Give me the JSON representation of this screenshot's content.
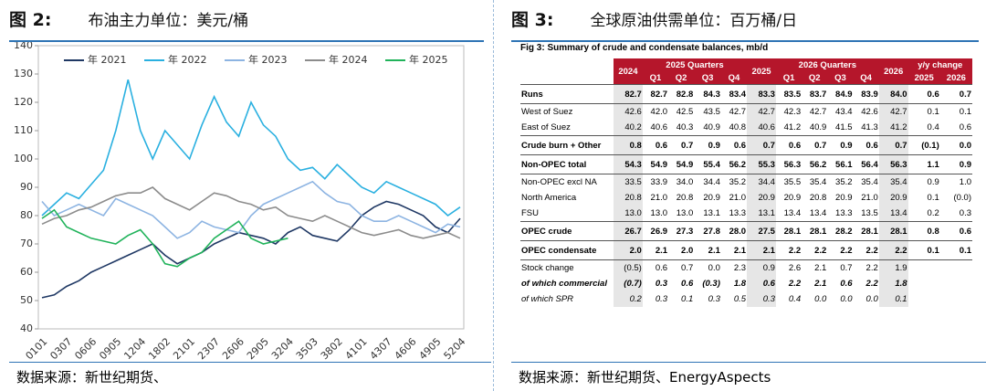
{
  "left_panel": {
    "figure_label": "图 2:",
    "caption": "布油主力单位：美元/桶",
    "source": "数据来源：新世纪期货、"
  },
  "right_panel": {
    "figure_label": "图 3:",
    "caption": "全球原油供需单位：百万桶/日",
    "source": "数据来源：新世纪期货、EnergyAspects"
  },
  "chart_data": {
    "type": "line",
    "legend": "top",
    "grid": false,
    "categories": [
      "0101",
      null,
      "0307",
      null,
      "0606",
      null,
      "0905",
      null,
      "1204",
      null,
      "1802",
      null,
      "2101",
      null,
      "2307",
      null,
      "2606",
      null,
      "2905",
      null,
      "3204",
      null,
      "3503",
      null,
      "3802",
      null,
      "4101",
      null,
      "4307",
      null,
      "4606",
      null,
      "4905",
      null,
      "5204"
    ],
    "ylim": [
      40,
      140
    ],
    "yticks": [
      40,
      50,
      60,
      70,
      80,
      90,
      100,
      110,
      120,
      130,
      140
    ],
    "series": [
      {
        "name": "年 2021",
        "color": "#1f3864",
        "values": [
          51,
          52,
          55,
          57,
          60,
          62,
          64,
          66,
          68,
          70,
          66,
          63,
          65,
          67,
          70,
          72,
          74,
          73,
          72,
          70,
          74,
          76,
          73,
          72,
          71,
          75,
          80,
          83,
          85,
          84,
          82,
          80,
          76,
          74,
          79
        ]
      },
      {
        "name": "年 2022",
        "color": "#2ab0e0",
        "values": [
          80,
          84,
          88,
          86,
          91,
          96,
          110,
          128,
          110,
          100,
          110,
          105,
          100,
          112,
          122,
          113,
          108,
          120,
          112,
          108,
          100,
          96,
          97,
          93,
          98,
          94,
          90,
          88,
          92,
          90,
          88,
          86,
          84,
          80,
          83
        ]
      },
      {
        "name": "年 2023",
        "color": "#8db4e2",
        "values": [
          85,
          80,
          82,
          84,
          82,
          80,
          86,
          84,
          82,
          80,
          76,
          72,
          74,
          78,
          76,
          75,
          74,
          80,
          84,
          86,
          88,
          90,
          92,
          88,
          85,
          84,
          80,
          78,
          78,
          80,
          78,
          76,
          74,
          77,
          76
        ]
      },
      {
        "name": "年 2024",
        "color": "#8c8c8c",
        "values": [
          77,
          79,
          80,
          82,
          83,
          85,
          87,
          88,
          88,
          90,
          86,
          84,
          82,
          85,
          88,
          87,
          85,
          84,
          82,
          83,
          80,
          79,
          78,
          80,
          78,
          76,
          74,
          73,
          74,
          75,
          73,
          72,
          73,
          74,
          72
        ]
      },
      {
        "name": "年 2025",
        "color": "#21b35b",
        "values": [
          79,
          82,
          76,
          74,
          72,
          71,
          70,
          73,
          75,
          70,
          63,
          62,
          65,
          67,
          72,
          75,
          78,
          72,
          70,
          71,
          72,
          null,
          null,
          null,
          null,
          null,
          null,
          null,
          null,
          null,
          null,
          null,
          null,
          null,
          null
        ]
      }
    ]
  },
  "table": {
    "title": "Fig 3: Summary of crude and condensate balances, mb/d",
    "header_top": [
      "2024",
      "2025 Quarters",
      "2025",
      "2026 Quarters",
      "2026",
      "y/y change"
    ],
    "header_sub": [
      "Q1",
      "Q2",
      "Q3",
      "Q4",
      "Q1",
      "Q2",
      "Q3",
      "Q4",
      "2025",
      "2026"
    ],
    "rows": [
      {
        "name": "Runs",
        "values": [
          "82.7",
          "82.7",
          "82.8",
          "84.3",
          "83.4",
          "83.3",
          "83.5",
          "83.7",
          "84.9",
          "83.9",
          "84.0",
          "0.6",
          "0.7"
        ]
      },
      {
        "name": "West of Suez",
        "values": [
          "42.6",
          "42.0",
          "42.5",
          "43.5",
          "42.7",
          "42.7",
          "42.3",
          "42.7",
          "43.4",
          "42.6",
          "42.7",
          "0.1",
          "0.1"
        ]
      },
      {
        "name": "East of Suez",
        "values": [
          "40.2",
          "40.6",
          "40.3",
          "40.9",
          "40.8",
          "40.6",
          "41.2",
          "40.9",
          "41.5",
          "41.3",
          "41.2",
          "0.4",
          "0.6"
        ]
      },
      {
        "name": "Crude burn + Other",
        "values": [
          "0.8",
          "0.6",
          "0.7",
          "0.9",
          "0.6",
          "0.7",
          "0.6",
          "0.7",
          "0.9",
          "0.6",
          "0.7",
          "(0.1)",
          "0.0"
        ]
      },
      {
        "name": "Non-OPEC total",
        "values": [
          "54.3",
          "54.9",
          "54.9",
          "55.4",
          "56.2",
          "55.3",
          "56.3",
          "56.2",
          "56.1",
          "56.4",
          "56.3",
          "1.1",
          "0.9"
        ]
      },
      {
        "name": "Non-OPEC excl NA",
        "values": [
          "33.5",
          "33.9",
          "34.0",
          "34.4",
          "35.2",
          "34.4",
          "35.5",
          "35.4",
          "35.2",
          "35.4",
          "35.4",
          "0.9",
          "1.0"
        ]
      },
      {
        "name": "North America",
        "values": [
          "20.8",
          "21.0",
          "20.8",
          "20.9",
          "21.0",
          "20.9",
          "20.9",
          "20.8",
          "20.9",
          "21.0",
          "20.9",
          "0.1",
          "(0.0)"
        ]
      },
      {
        "name": "FSU",
        "values": [
          "13.0",
          "13.0",
          "13.0",
          "13.1",
          "13.3",
          "13.1",
          "13.4",
          "13.4",
          "13.3",
          "13.5",
          "13.4",
          "0.2",
          "0.3"
        ]
      },
      {
        "name": "OPEC crude",
        "values": [
          "26.7",
          "26.9",
          "27.3",
          "27.8",
          "28.0",
          "27.5",
          "28.1",
          "28.1",
          "28.2",
          "28.1",
          "28.1",
          "0.8",
          "0.6"
        ]
      },
      {
        "name": "OPEC condensate",
        "values": [
          "2.0",
          "2.1",
          "2.0",
          "2.1",
          "2.1",
          "2.1",
          "2.2",
          "2.2",
          "2.2",
          "2.2",
          "2.2",
          "0.1",
          "0.1"
        ]
      },
      {
        "name": "Stock change",
        "values": [
          "(0.5)",
          "0.6",
          "0.7",
          "0.0",
          "2.3",
          "0.9",
          "2.6",
          "2.1",
          "0.7",
          "2.2",
          "1.9"
        ]
      },
      {
        "name": "of which commercial",
        "values": [
          "(0.7)",
          "0.3",
          "0.6",
          "(0.3)",
          "1.8",
          "0.6",
          "2.2",
          "2.1",
          "0.6",
          "2.2",
          "1.8"
        ]
      },
      {
        "name": "of which SPR",
        "values": [
          "0.2",
          "0.3",
          "0.1",
          "0.3",
          "0.5",
          "0.3",
          "0.4",
          "0.0",
          "0.0",
          "0.0",
          "0.1"
        ]
      }
    ]
  }
}
